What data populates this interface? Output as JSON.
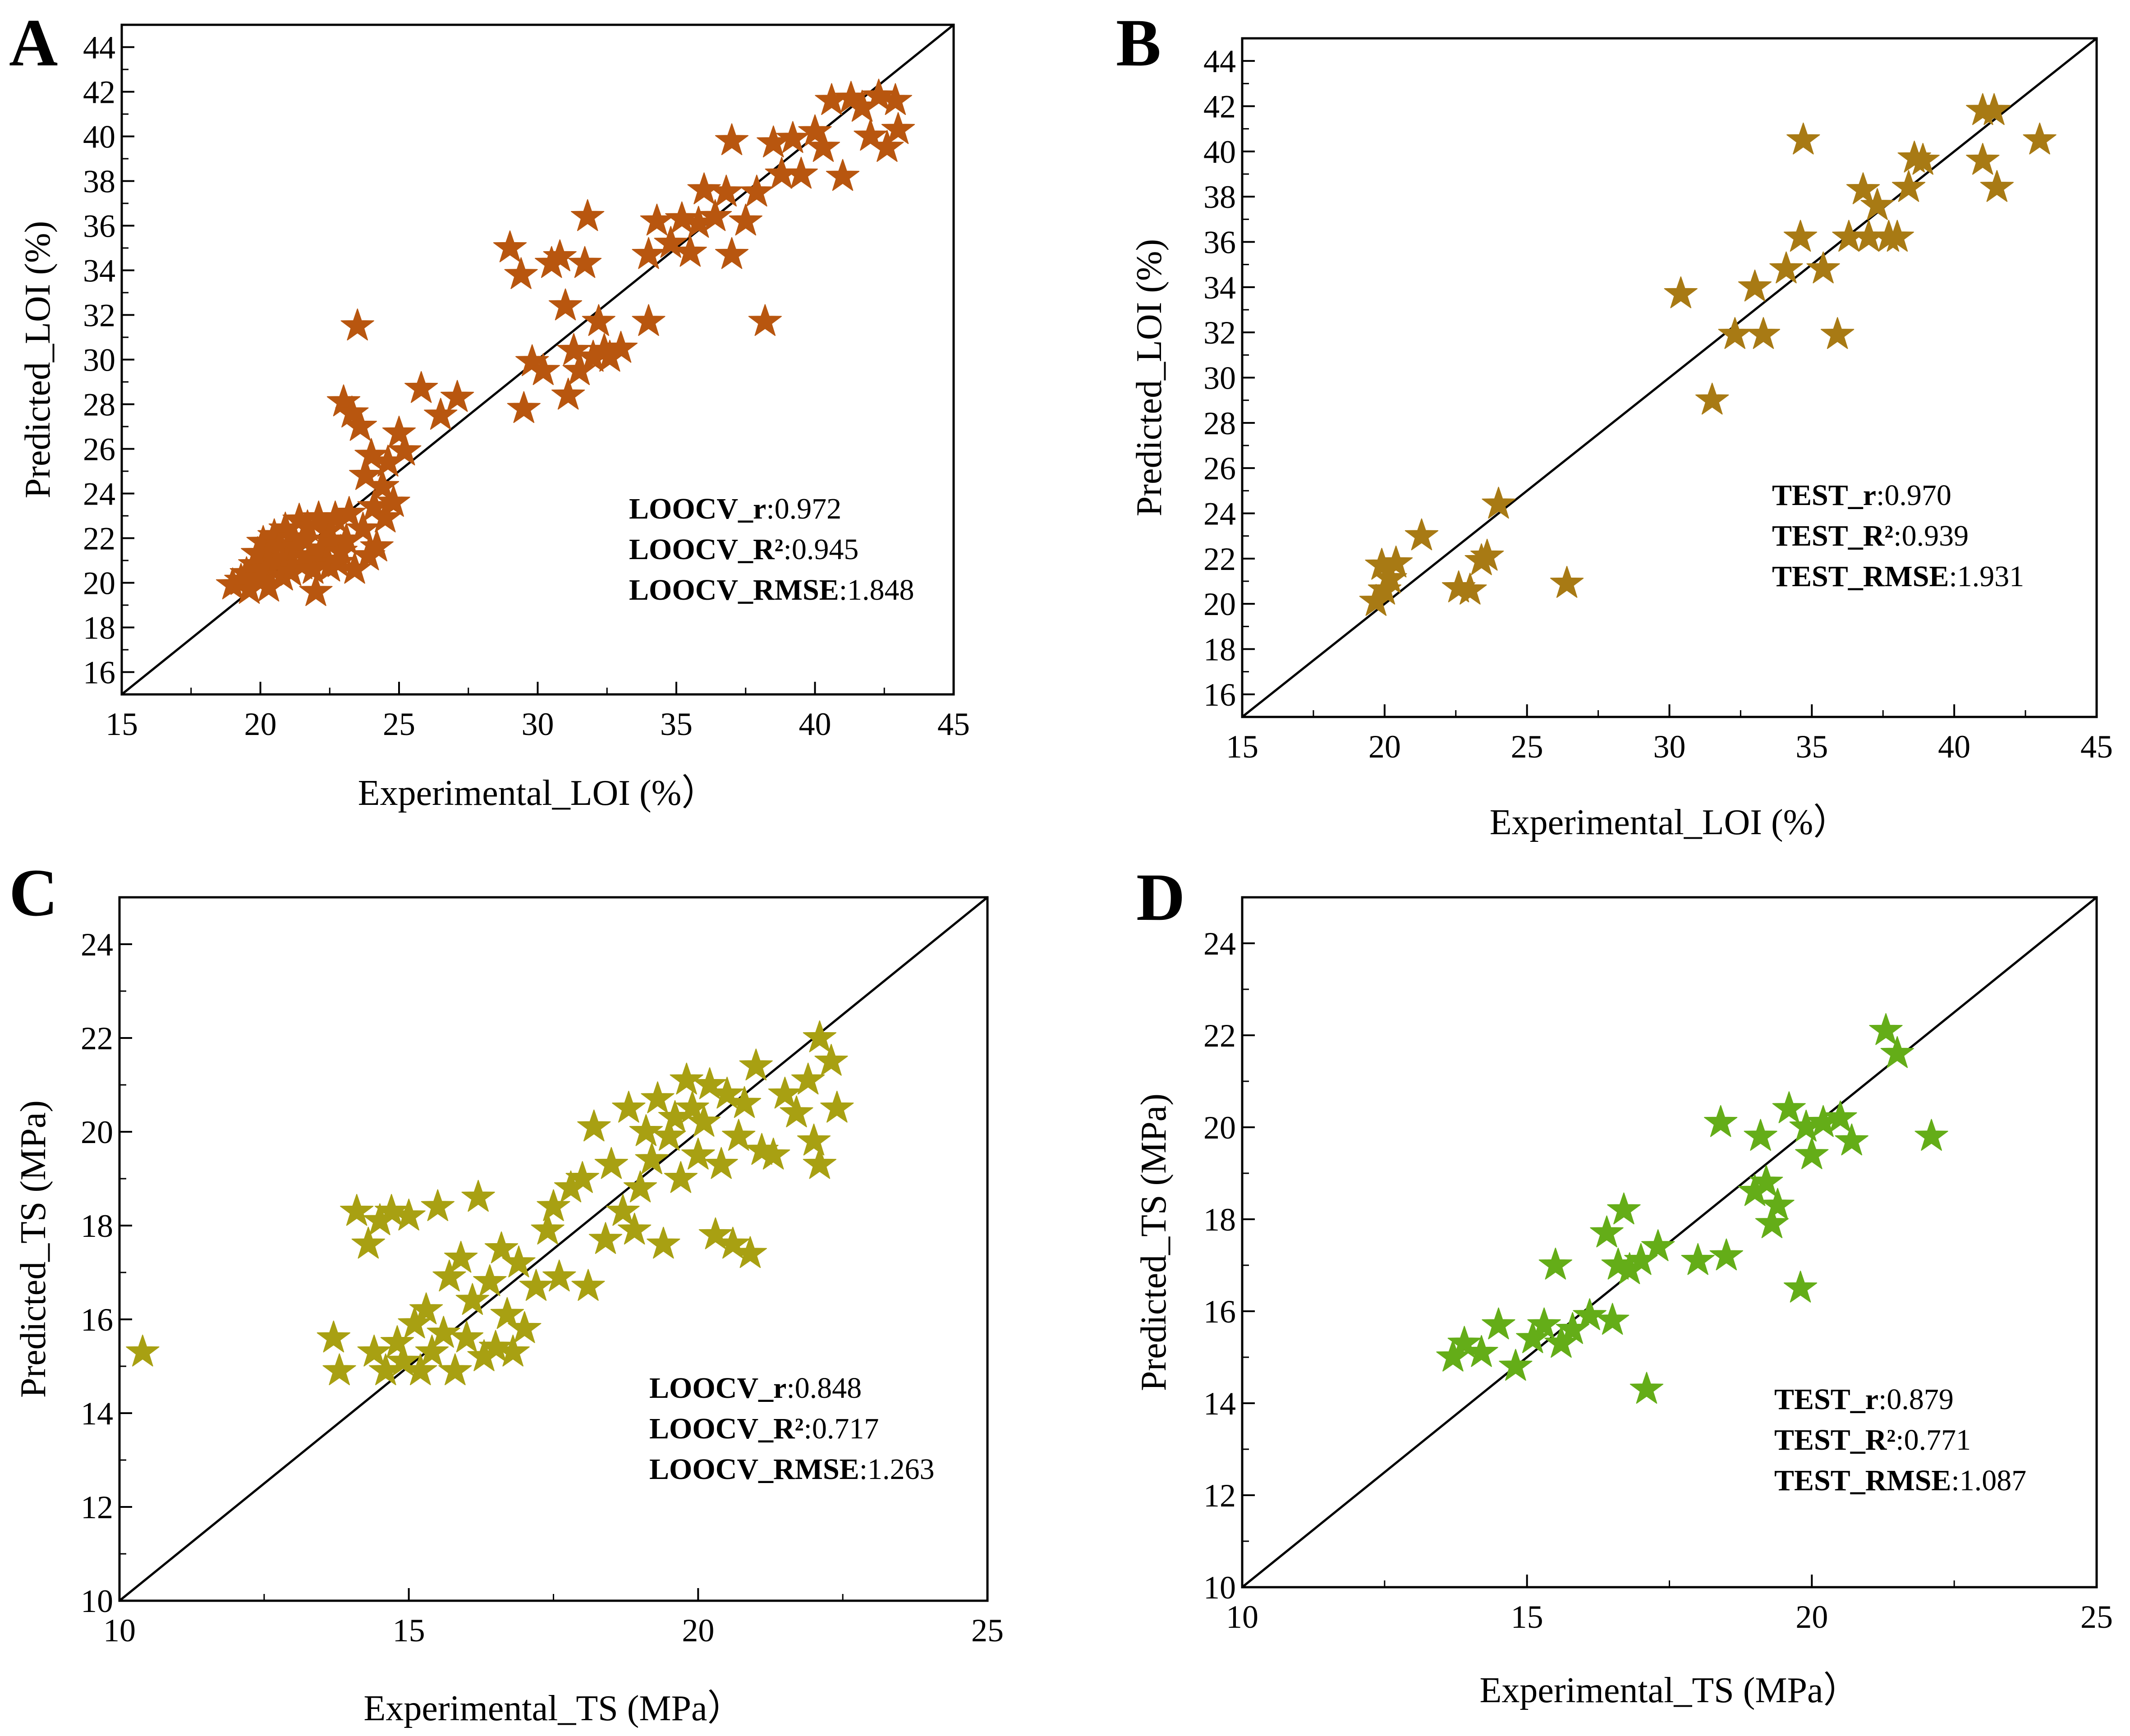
{
  "colors": {
    "A": "#b8560f",
    "B": "#a87a14",
    "C": "#a8a012",
    "D": "#64ad18",
    "line": "#000000"
  },
  "chart_data": [
    {
      "panel": "A",
      "type": "scatter",
      "marker": "star",
      "xlabel": "Experimental_LOI (%）",
      "ylabel": "Predicted_LOI (%)",
      "xlim": [
        15,
        45
      ],
      "ylim": [
        15,
        45
      ],
      "xticks": [
        15,
        20,
        25,
        30,
        35,
        40,
        45
      ],
      "yticks": [
        16,
        18,
        20,
        22,
        24,
        26,
        28,
        30,
        32,
        34,
        36,
        38,
        40,
        42,
        44
      ],
      "identity_line": true,
      "stats": [
        {
          "key": "LOOCV_r",
          "value": ":0.972"
        },
        {
          "key": "LOOCV_R²",
          "value": ":0.945"
        },
        {
          "key": "LOOCV_RMSE",
          "value": ":1.848"
        }
      ],
      "points": [
        [
          19.0,
          19.9
        ],
        [
          19.3,
          20.1
        ],
        [
          19.5,
          20.4
        ],
        [
          19.6,
          19.7
        ],
        [
          19.8,
          20.8
        ],
        [
          19.9,
          21.3
        ],
        [
          20.0,
          20.2
        ],
        [
          20.1,
          21.8
        ],
        [
          20.2,
          20.6
        ],
        [
          20.3,
          19.8
        ],
        [
          20.4,
          21.5
        ],
        [
          20.5,
          22.1
        ],
        [
          20.6,
          20.9
        ],
        [
          20.7,
          21.7
        ],
        [
          20.8,
          20.3
        ],
        [
          20.9,
          22.4
        ],
        [
          21.0,
          21.1
        ],
        [
          21.1,
          20.5
        ],
        [
          21.2,
          22.0
        ],
        [
          21.3,
          21.6
        ],
        [
          21.4,
          22.8
        ],
        [
          21.5,
          20.8
        ],
        [
          21.6,
          21.9
        ],
        [
          21.7,
          22.5
        ],
        [
          21.8,
          21.2
        ],
        [
          21.9,
          20.6
        ],
        [
          22.0,
          19.6
        ],
        [
          22.1,
          22.9
        ],
        [
          22.2,
          21.5
        ],
        [
          22.3,
          21.0
        ],
        [
          22.4,
          22.3
        ],
        [
          22.5,
          20.7
        ],
        [
          22.6,
          21.8
        ],
        [
          22.7,
          22.9
        ],
        [
          22.8,
          20.9
        ],
        [
          22.9,
          21.4
        ],
        [
          23.0,
          28.1
        ],
        [
          23.1,
          21.9
        ],
        [
          23.2,
          23.1
        ],
        [
          23.3,
          27.6
        ],
        [
          23.4,
          20.6
        ],
        [
          23.5,
          31.5
        ],
        [
          23.6,
          27.0
        ],
        [
          23.7,
          22.4
        ],
        [
          23.8,
          24.8
        ],
        [
          23.9,
          21.2
        ],
        [
          24.0,
          25.7
        ],
        [
          24.1,
          23.4
        ],
        [
          24.2,
          21.6
        ],
        [
          24.4,
          24.3
        ],
        [
          24.5,
          22.9
        ],
        [
          24.6,
          25.4
        ],
        [
          24.8,
          23.6
        ],
        [
          25.0,
          26.7
        ],
        [
          25.2,
          25.9
        ],
        [
          25.8,
          28.7
        ],
        [
          26.5,
          27.5
        ],
        [
          27.1,
          28.3
        ],
        [
          29.0,
          35.0
        ],
        [
          29.4,
          33.8
        ],
        [
          29.5,
          27.8
        ],
        [
          29.8,
          29.9
        ],
        [
          30.2,
          29.5
        ],
        [
          30.5,
          34.3
        ],
        [
          30.8,
          34.6
        ],
        [
          31.0,
          32.4
        ],
        [
          31.1,
          28.4
        ],
        [
          31.3,
          30.4
        ],
        [
          31.5,
          29.5
        ],
        [
          31.7,
          34.3
        ],
        [
          31.8,
          36.4
        ],
        [
          32.0,
          30.1
        ],
        [
          32.2,
          31.7
        ],
        [
          32.4,
          30.4
        ],
        [
          32.6,
          30.1
        ],
        [
          33.0,
          30.5
        ],
        [
          34.0,
          31.7
        ],
        [
          34.0,
          34.7
        ],
        [
          34.3,
          36.2
        ],
        [
          34.8,
          35.2
        ],
        [
          35.2,
          36.3
        ],
        [
          35.5,
          34.8
        ],
        [
          35.8,
          36.1
        ],
        [
          36.0,
          37.6
        ],
        [
          36.4,
          36.4
        ],
        [
          36.8,
          37.5
        ],
        [
          37.0,
          39.8
        ],
        [
          37.0,
          34.7
        ],
        [
          37.5,
          36.2
        ],
        [
          37.9,
          37.5
        ],
        [
          38.2,
          31.7
        ],
        [
          38.5,
          39.7
        ],
        [
          38.8,
          38.3
        ],
        [
          39.2,
          39.9
        ],
        [
          39.5,
          38.3
        ],
        [
          40.0,
          40.2
        ],
        [
          40.3,
          39.5
        ],
        [
          40.6,
          41.6
        ],
        [
          41.0,
          38.2
        ],
        [
          41.3,
          41.7
        ],
        [
          41.7,
          41.3
        ],
        [
          42.0,
          40.0
        ],
        [
          42.3,
          41.8
        ],
        [
          42.6,
          39.5
        ],
        [
          43.0,
          40.3
        ],
        [
          42.9,
          41.6
        ]
      ]
    },
    {
      "panel": "B",
      "type": "scatter",
      "marker": "star",
      "xlabel": "Experimental_LOI (%）",
      "ylabel": "Predicted_LOI (%)",
      "xlim": [
        15,
        45
      ],
      "ylim": [
        15,
        45
      ],
      "xticks": [
        15,
        20,
        25,
        30,
        35,
        40,
        45
      ],
      "yticks": [
        16,
        18,
        20,
        22,
        24,
        26,
        28,
        30,
        32,
        34,
        36,
        38,
        40,
        42,
        44
      ],
      "identity_line": true,
      "stats": [
        {
          "key": "TEST_r",
          "value": ":0.970"
        },
        {
          "key": "TEST_R²",
          "value": ":0.939"
        },
        {
          "key": "TEST_RMSE",
          "value": ":1.931"
        }
      ],
      "points": [
        [
          19.7,
          20.1
        ],
        [
          19.9,
          21.7
        ],
        [
          20.0,
          20.6
        ],
        [
          20.2,
          21.1
        ],
        [
          20.4,
          21.8
        ],
        [
          21.3,
          23.0
        ],
        [
          22.6,
          20.7
        ],
        [
          23.0,
          20.6
        ],
        [
          23.4,
          21.9
        ],
        [
          23.6,
          22.1
        ],
        [
          24.0,
          24.4
        ],
        [
          26.4,
          20.9
        ],
        [
          30.4,
          33.7
        ],
        [
          31.5,
          29.0
        ],
        [
          32.3,
          31.9
        ],
        [
          33.0,
          34.0
        ],
        [
          33.3,
          31.9
        ],
        [
          34.1,
          34.8
        ],
        [
          34.6,
          36.2
        ],
        [
          34.7,
          40.5
        ],
        [
          35.4,
          34.8
        ],
        [
          35.9,
          31.9
        ],
        [
          36.3,
          36.2
        ],
        [
          36.8,
          38.3
        ],
        [
          37.0,
          36.2
        ],
        [
          37.3,
          37.6
        ],
        [
          37.7,
          36.2
        ],
        [
          38.0,
          36.2
        ],
        [
          38.4,
          38.4
        ],
        [
          38.6,
          39.7
        ],
        [
          38.9,
          39.6
        ],
        [
          41.0,
          41.8
        ],
        [
          41.0,
          39.6
        ],
        [
          41.4,
          41.8
        ],
        [
          41.5,
          38.4
        ],
        [
          43.0,
          40.5
        ]
      ]
    },
    {
      "panel": "C",
      "type": "scatter",
      "marker": "star",
      "xlabel": "Experimental_TS (MPa）",
      "ylabel": "Predicted_TS (MPa)",
      "xlim": [
        10,
        25
      ],
      "ylim": [
        10,
        25
      ],
      "xticks": [
        10,
        15,
        20,
        25
      ],
      "yticks": [
        10,
        12,
        14,
        16,
        18,
        20,
        22,
        24
      ],
      "identity_line": true,
      "stats": [
        {
          "key": "LOOCV_r",
          "value": ":0.848"
        },
        {
          "key": "LOOCV_R²",
          "value": ":0.717"
        },
        {
          "key": "LOOCV_RMSE",
          "value": ":1.263"
        }
      ],
      "points": [
        [
          10.4,
          15.3
        ],
        [
          13.7,
          15.6
        ],
        [
          13.8,
          14.9
        ],
        [
          14.1,
          18.3
        ],
        [
          14.3,
          17.6
        ],
        [
          14.4,
          15.3
        ],
        [
          14.5,
          18.1
        ],
        [
          14.6,
          14.9
        ],
        [
          14.7,
          18.3
        ],
        [
          14.8,
          15.5
        ],
        [
          14.9,
          15.1
        ],
        [
          15.0,
          18.2
        ],
        [
          15.1,
          15.9
        ],
        [
          15.2,
          14.9
        ],
        [
          15.3,
          16.2
        ],
        [
          15.4,
          15.3
        ],
        [
          15.5,
          18.4
        ],
        [
          15.6,
          15.7
        ],
        [
          15.7,
          16.9
        ],
        [
          15.8,
          14.9
        ],
        [
          15.9,
          17.3
        ],
        [
          16.0,
          15.6
        ],
        [
          16.1,
          16.4
        ],
        [
          16.2,
          18.6
        ],
        [
          16.3,
          15.2
        ],
        [
          16.4,
          16.8
        ],
        [
          16.5,
          15.4
        ],
        [
          16.6,
          17.5
        ],
        [
          16.7,
          16.1
        ],
        [
          16.8,
          15.3
        ],
        [
          16.9,
          17.2
        ],
        [
          17.0,
          15.8
        ],
        [
          17.2,
          16.7
        ],
        [
          17.4,
          17.9
        ],
        [
          17.5,
          18.4
        ],
        [
          17.6,
          16.9
        ],
        [
          17.8,
          18.8
        ],
        [
          18.0,
          19.0
        ],
        [
          18.1,
          16.7
        ],
        [
          18.2,
          20.1
        ],
        [
          18.4,
          17.7
        ],
        [
          18.5,
          19.3
        ],
        [
          18.7,
          18.3
        ],
        [
          18.8,
          20.5
        ],
        [
          18.9,
          17.9
        ],
        [
          19.0,
          18.8
        ],
        [
          19.1,
          20.0
        ],
        [
          19.2,
          19.4
        ],
        [
          19.3,
          20.7
        ],
        [
          19.4,
          17.6
        ],
        [
          19.5,
          19.9
        ],
        [
          19.6,
          20.3
        ],
        [
          19.7,
          19.0
        ],
        [
          19.8,
          21.1
        ],
        [
          19.9,
          20.5
        ],
        [
          20.0,
          19.5
        ],
        [
          20.1,
          20.2
        ],
        [
          20.2,
          21.0
        ],
        [
          20.3,
          17.8
        ],
        [
          20.4,
          19.3
        ],
        [
          20.5,
          20.8
        ],
        [
          20.6,
          17.6
        ],
        [
          20.7,
          19.9
        ],
        [
          20.8,
          20.6
        ],
        [
          20.9,
          17.4
        ],
        [
          21.0,
          21.4
        ],
        [
          21.1,
          19.6
        ],
        [
          21.3,
          19.5
        ],
        [
          21.5,
          20.8
        ],
        [
          21.7,
          20.4
        ],
        [
          21.9,
          21.1
        ],
        [
          22.0,
          19.8
        ],
        [
          22.1,
          22.0
        ],
        [
          22.1,
          19.3
        ],
        [
          22.3,
          21.5
        ],
        [
          22.4,
          20.5
        ]
      ]
    },
    {
      "panel": "D",
      "type": "scatter",
      "marker": "star",
      "xlabel": "Experimental_TS (MPa）",
      "ylabel": "Predicted_TS (MPa)",
      "xlim": [
        10,
        25
      ],
      "ylim": [
        10,
        25
      ],
      "xticks": [
        10,
        15,
        20,
        25
      ],
      "yticks": [
        10,
        12,
        14,
        16,
        18,
        20,
        22,
        24
      ],
      "identity_line": true,
      "stats": [
        {
          "key": "TEST_r",
          "value": ":0.879"
        },
        {
          "key": "TEST_R²",
          "value": ":0.771"
        },
        {
          "key": "TEST_RMSE",
          "value": ":1.087"
        }
      ],
      "points": [
        [
          13.7,
          15.0
        ],
        [
          13.9,
          15.3
        ],
        [
          14.2,
          15.1
        ],
        [
          14.5,
          15.7
        ],
        [
          14.8,
          14.8
        ],
        [
          15.1,
          15.4
        ],
        [
          15.3,
          15.7
        ],
        [
          15.5,
          17.0
        ],
        [
          15.6,
          15.3
        ],
        [
          15.8,
          15.6
        ],
        [
          16.1,
          15.9
        ],
        [
          16.4,
          17.7
        ],
        [
          16.5,
          15.8
        ],
        [
          16.6,
          17.0
        ],
        [
          16.7,
          18.2
        ],
        [
          16.8,
          16.9
        ],
        [
          17.0,
          17.1
        ],
        [
          17.1,
          14.3
        ],
        [
          17.3,
          17.4
        ],
        [
          18.0,
          17.1
        ],
        [
          18.4,
          20.1
        ],
        [
          18.5,
          17.2
        ],
        [
          19.0,
          18.6
        ],
        [
          19.1,
          19.8
        ],
        [
          19.2,
          18.8
        ],
        [
          19.3,
          17.9
        ],
        [
          19.4,
          18.3
        ],
        [
          19.6,
          20.4
        ],
        [
          19.8,
          16.5
        ],
        [
          19.9,
          20.0
        ],
        [
          20.0,
          19.4
        ],
        [
          20.2,
          20.1
        ],
        [
          20.5,
          20.2
        ],
        [
          20.7,
          19.7
        ],
        [
          21.3,
          22.1
        ],
        [
          21.5,
          21.6
        ],
        [
          22.1,
          19.8
        ]
      ]
    }
  ]
}
